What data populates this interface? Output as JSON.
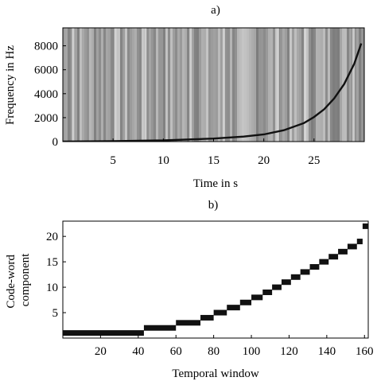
{
  "chart_data": [
    {
      "id": "a",
      "type": "heatmap",
      "title": "a)",
      "xlabel": "Time in s",
      "ylabel": "Frequency in Hz",
      "xlim": [
        0,
        30
      ],
      "ylim": [
        0,
        9500
      ],
      "xticks": [
        5,
        10,
        15,
        20,
        25
      ],
      "xtick_labels": [
        "5",
        "10",
        "15",
        "20",
        "25"
      ],
      "yticks": [
        0,
        2000,
        4000,
        6000,
        8000
      ],
      "ytick_labels": [
        "0",
        "2000",
        "4000",
        "6000",
        "8000"
      ],
      "curve": {
        "description_free": true,
        "x": [
          0,
          5,
          10,
          15,
          18,
          20,
          22,
          24,
          25,
          26,
          27,
          28,
          29,
          29.7
        ],
        "y": [
          0,
          40,
          100,
          250,
          420,
          600,
          950,
          1550,
          2050,
          2700,
          3600,
          4800,
          6500,
          8200
        ]
      },
      "colors": {
        "background": "#8c8c8c",
        "curve": "#111111"
      },
      "grid": false
    },
    {
      "id": "b",
      "type": "line",
      "title": "b)",
      "xlabel": "Temporal window",
      "ylabel": [
        "Code-word",
        "component"
      ],
      "xlim": [
        0,
        162
      ],
      "ylim": [
        0,
        23
      ],
      "xticks": [
        20,
        40,
        60,
        80,
        100,
        120,
        140,
        160
      ],
      "xtick_labels": [
        "20",
        "40",
        "60",
        "80",
        "100",
        "120",
        "140",
        "160"
      ],
      "yticks": [
        5,
        10,
        15,
        20
      ],
      "ytick_labels": [
        "5",
        "10",
        "15",
        "20"
      ],
      "series": [
        {
          "step": true,
          "x": [
            0,
            43,
            60,
            73,
            80,
            87,
            94,
            100,
            106,
            111,
            116,
            121,
            126,
            131,
            136,
            141,
            146,
            151,
            156,
            162
          ],
          "y": [
            1,
            2,
            3,
            4,
            5,
            6,
            7,
            8,
            9,
            10,
            11,
            12,
            13,
            14,
            15,
            16,
            17,
            18,
            19,
            20
          ],
          "final_steps": [
            [
              156,
              21
            ],
            [
              159,
              22
            ]
          ]
        }
      ],
      "colors": {
        "line": "#111111"
      },
      "grid": false
    }
  ]
}
